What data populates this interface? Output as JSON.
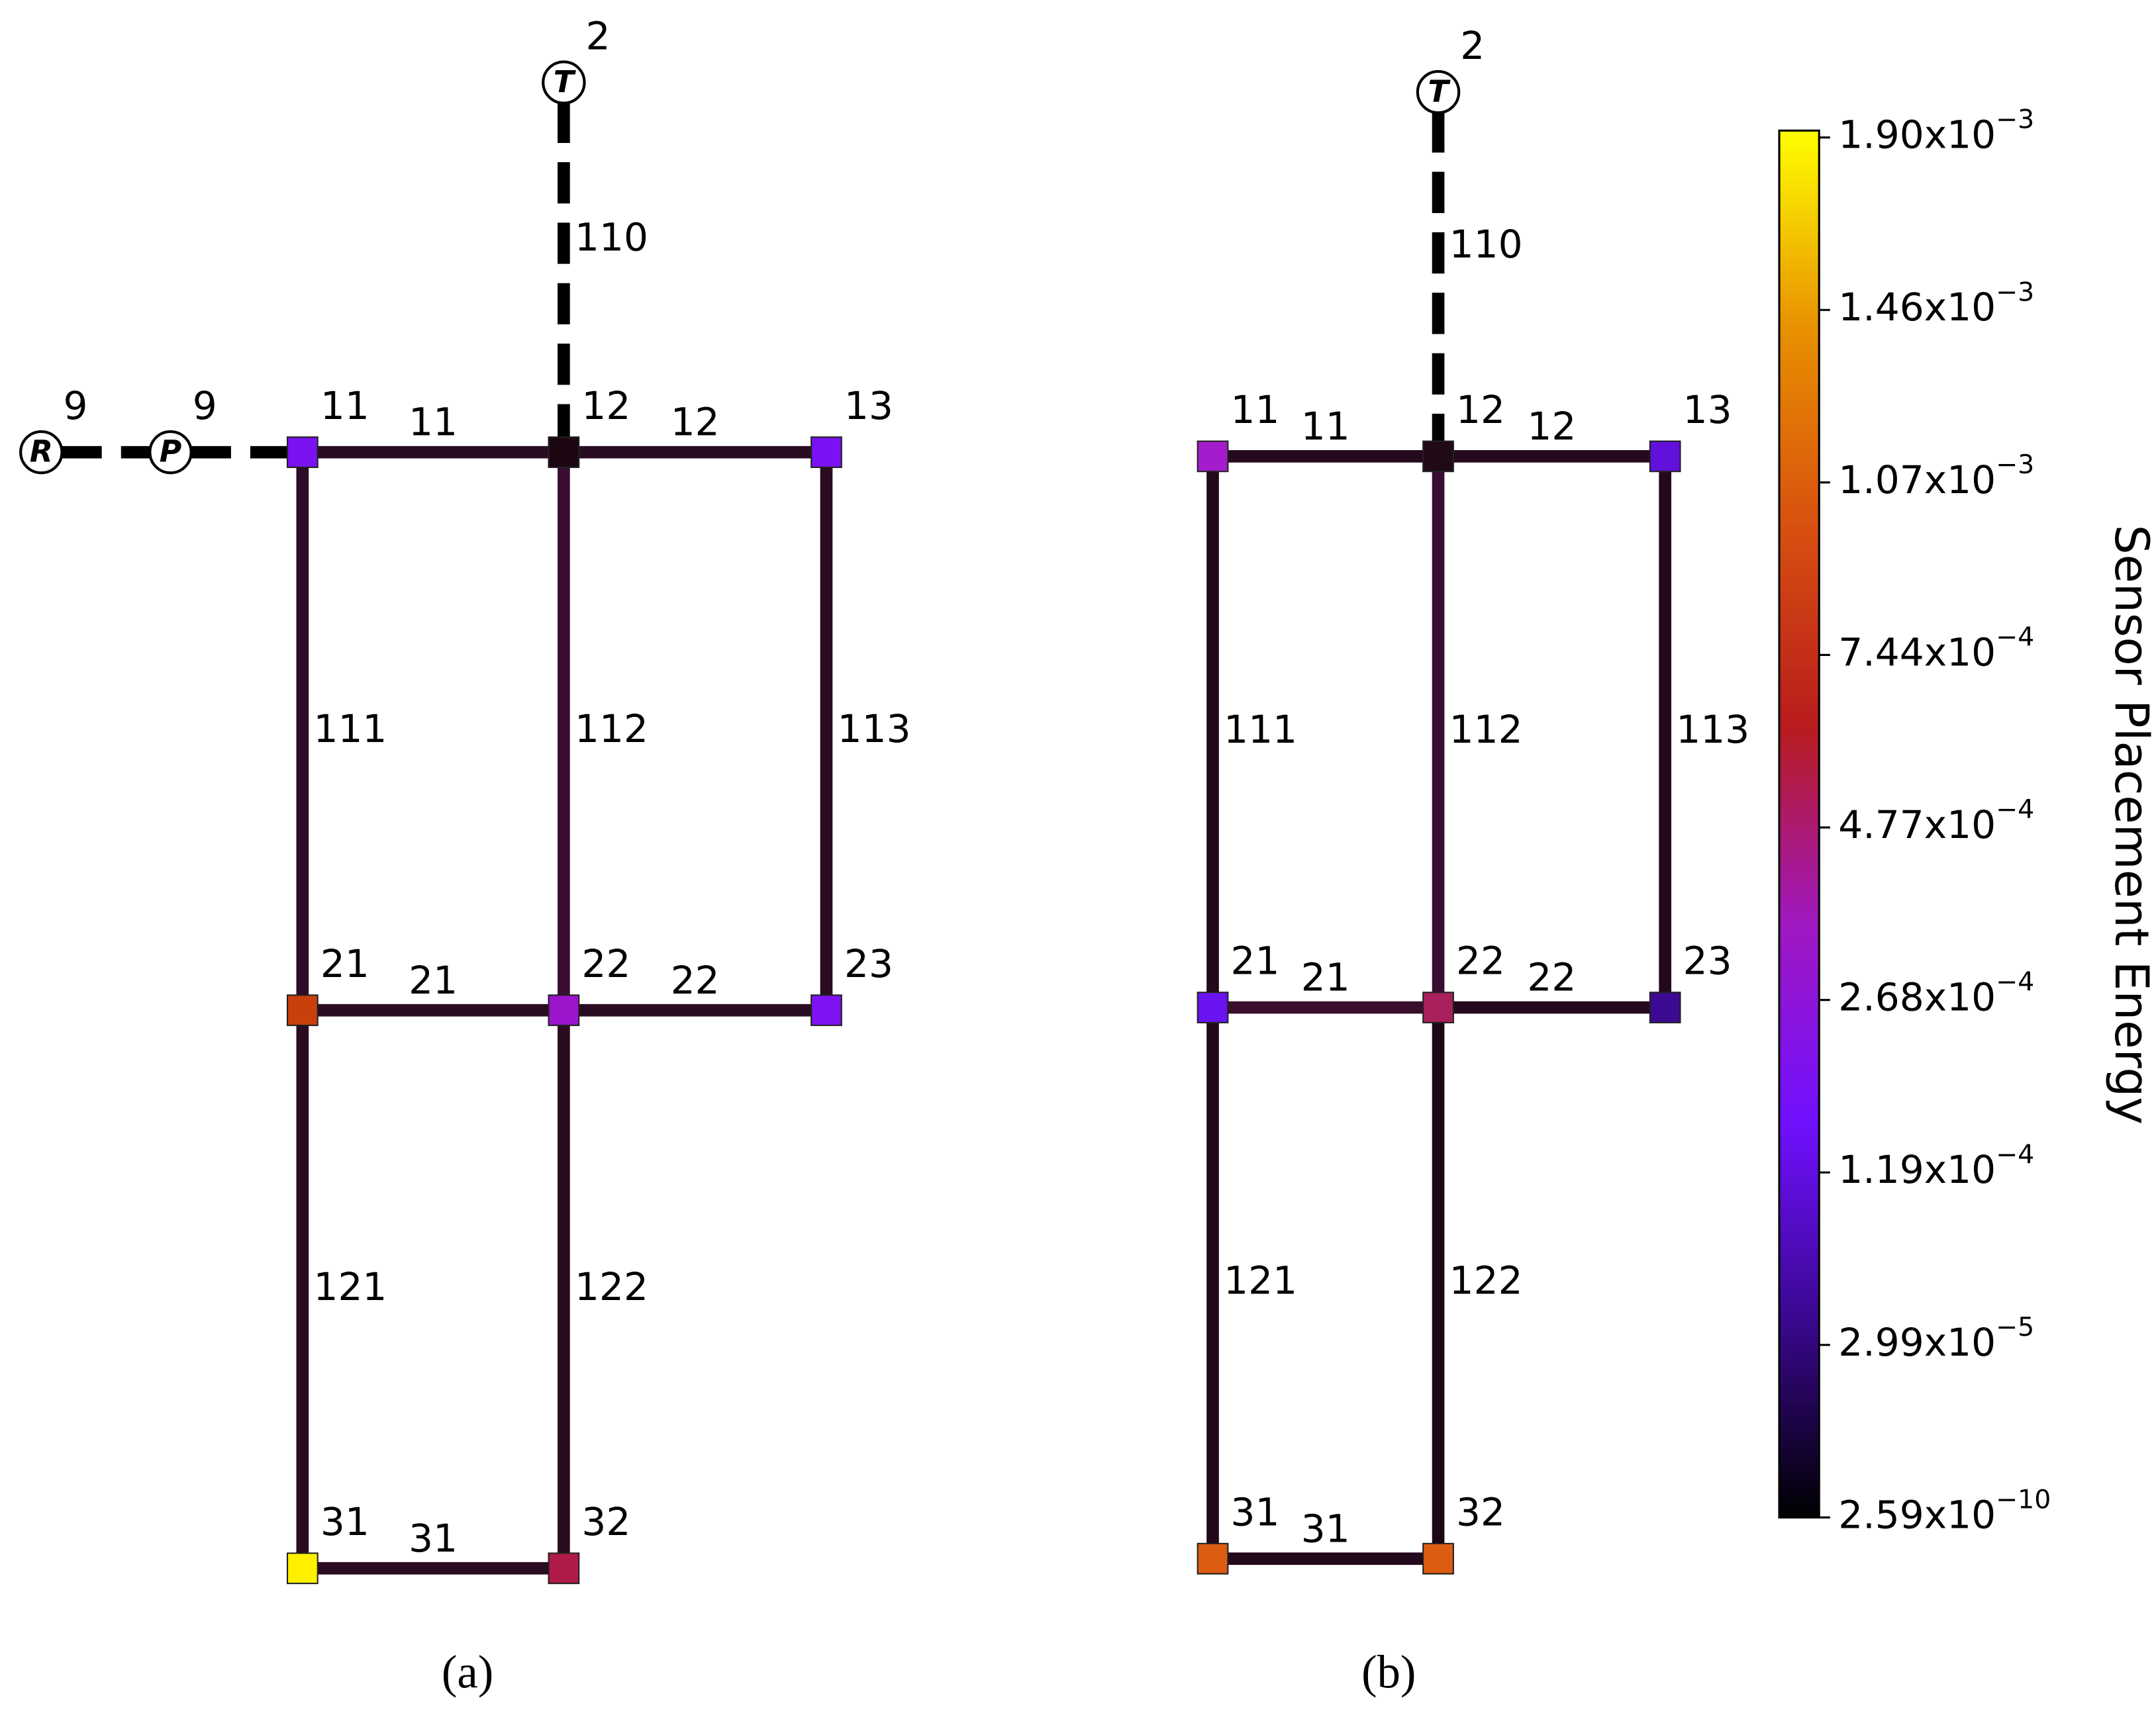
{
  "panels": [
    {
      "label": "(a)",
      "nodes": [
        {
          "id": "11",
          "color": "#7a12f2"
        },
        {
          "id": "12",
          "color": "#1c0612"
        },
        {
          "id": "13",
          "color": "#7a12f4"
        },
        {
          "id": "21",
          "color": "#c8400c"
        },
        {
          "id": "22",
          "color": "#9c14cc"
        },
        {
          "id": "23",
          "color": "#7e12f2"
        },
        {
          "id": "31",
          "color": "#fff000"
        },
        {
          "id": "32",
          "color": "#b01a48"
        }
      ],
      "terminals": [
        {
          "symbol": "T",
          "sup": "2"
        },
        {
          "symbol": "R",
          "sup": "9"
        },
        {
          "symbol": "P",
          "sup": "9"
        }
      ],
      "edges": [
        {
          "from": "T",
          "to": "12",
          "label": "110",
          "style": "dashed"
        },
        {
          "from": "R",
          "to": "P",
          "style": "dashed"
        },
        {
          "from": "P",
          "to": "11",
          "style": "dashed"
        },
        {
          "from": "11",
          "to": "12",
          "label": "11",
          "color": "#2a0c22"
        },
        {
          "from": "12",
          "to": "13",
          "label": "12",
          "color": "#2a0c22"
        },
        {
          "from": "11",
          "to": "21",
          "label": "111",
          "color": "#2c0c26"
        },
        {
          "from": "12",
          "to": "22",
          "label": "112",
          "color": "#3a0e30"
        },
        {
          "from": "13",
          "to": "23",
          "label": "113",
          "color": "#2a0c22"
        },
        {
          "from": "21",
          "to": "22",
          "label": "21",
          "color": "#2a0c22"
        },
        {
          "from": "22",
          "to": "23",
          "label": "22",
          "color": "#2a0c22"
        },
        {
          "from": "21",
          "to": "31",
          "label": "121",
          "color": "#2a0c20"
        },
        {
          "from": "22",
          "to": "32",
          "label": "122",
          "color": "#2a0c20"
        },
        {
          "from": "31",
          "to": "32",
          "label": "31",
          "color": "#2a0c20"
        }
      ]
    },
    {
      "label": "(b)",
      "nodes": [
        {
          "id": "11",
          "color": "#a41ccc"
        },
        {
          "id": "12",
          "color": "#200a18"
        },
        {
          "id": "13",
          "color": "#6410dc"
        },
        {
          "id": "21",
          "color": "#6a12f0"
        },
        {
          "id": "22",
          "color": "#a8205c"
        },
        {
          "id": "23",
          "color": "#3c0a92"
        },
        {
          "id": "31",
          "color": "#dc5c12"
        },
        {
          "id": "32",
          "color": "#dc5c12"
        }
      ],
      "terminals": [
        {
          "symbol": "T",
          "sup": "2"
        }
      ],
      "edges": [
        {
          "from": "T",
          "to": "12",
          "label": "110",
          "style": "dashed"
        },
        {
          "from": "11",
          "to": "12",
          "label": "11",
          "color": "#24091c"
        },
        {
          "from": "12",
          "to": "13",
          "label": "12",
          "color": "#24091c"
        },
        {
          "from": "11",
          "to": "21",
          "label": "111",
          "color": "#24091c"
        },
        {
          "from": "12",
          "to": "22",
          "label": "112",
          "color": "#3a0e32"
        },
        {
          "from": "13",
          "to": "23",
          "label": "113",
          "color": "#24091c"
        },
        {
          "from": "21",
          "to": "22",
          "label": "21",
          "color": "#3a0e2c"
        },
        {
          "from": "22",
          "to": "23",
          "label": "22",
          "color": "#24091c"
        },
        {
          "from": "21",
          "to": "31",
          "label": "121",
          "color": "#24091c"
        },
        {
          "from": "22",
          "to": "32",
          "label": "122",
          "color": "#1c0714"
        },
        {
          "from": "31",
          "to": "32",
          "label": "31",
          "color": "#24091c"
        }
      ]
    }
  ],
  "colorbar": {
    "title": "Sensor Placement Energy",
    "stops": [
      "#000000",
      "#3a0890",
      "#7010ff",
      "#a018c0",
      "#b81c1c",
      "#d85010",
      "#e89000",
      "#ffff00"
    ],
    "ticks": [
      {
        "base": "1.90x10",
        "exp": "−3"
      },
      {
        "base": "1.46x10",
        "exp": "−3"
      },
      {
        "base": "1.07x10",
        "exp": "−3"
      },
      {
        "base": "7.44x10",
        "exp": "−4"
      },
      {
        "base": "4.77x10",
        "exp": "−4"
      },
      {
        "base": "2.68x10",
        "exp": "−4"
      },
      {
        "base": "1.19x10",
        "exp": "−4"
      },
      {
        "base": "2.99x10",
        "exp": "−5"
      },
      {
        "base": "2.59x10",
        "exp": "−10"
      }
    ]
  }
}
